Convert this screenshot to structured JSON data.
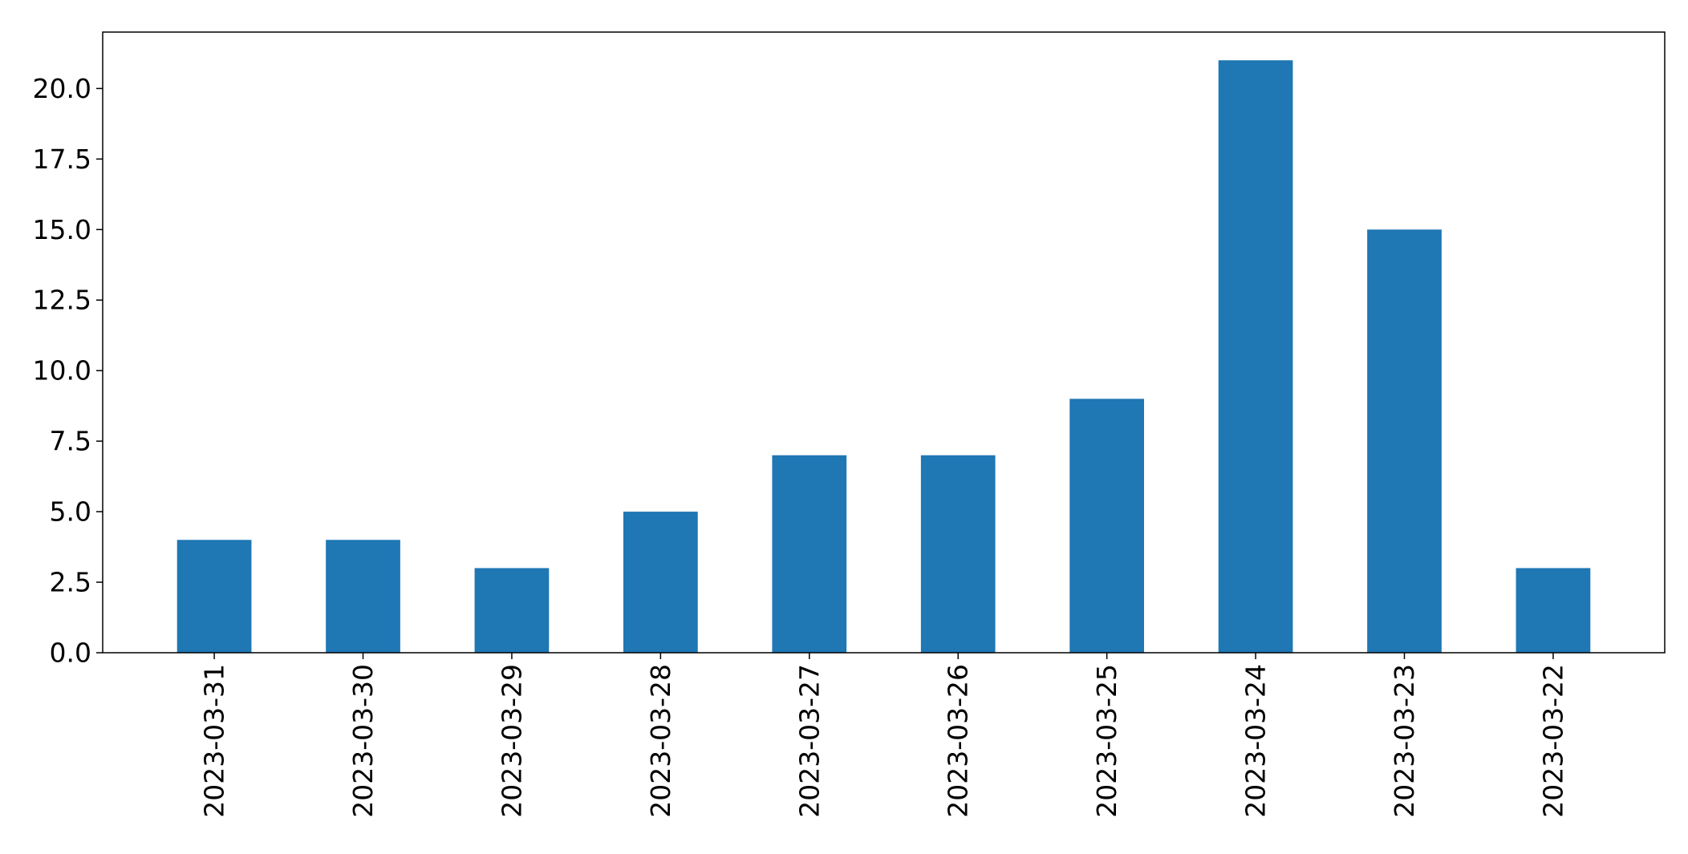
{
  "chart_data": {
    "type": "bar",
    "title": "",
    "xlabel": "",
    "ylabel": "",
    "categories": [
      "2023-03-31",
      "2023-03-30",
      "2023-03-29",
      "2023-03-28",
      "2023-03-27",
      "2023-03-26",
      "2023-03-25",
      "2023-03-24",
      "2023-03-23",
      "2023-03-22"
    ],
    "values": [
      4,
      4,
      3,
      5,
      7,
      7,
      9,
      21,
      15,
      3
    ],
    "ylim": [
      0,
      22
    ],
    "yticks": [
      "0.0",
      "2.5",
      "5.0",
      "7.5",
      "10.0",
      "12.5",
      "15.0",
      "17.5",
      "20.0"
    ],
    "bar_color": "#1f77b4",
    "grid": false,
    "legend": "none"
  }
}
